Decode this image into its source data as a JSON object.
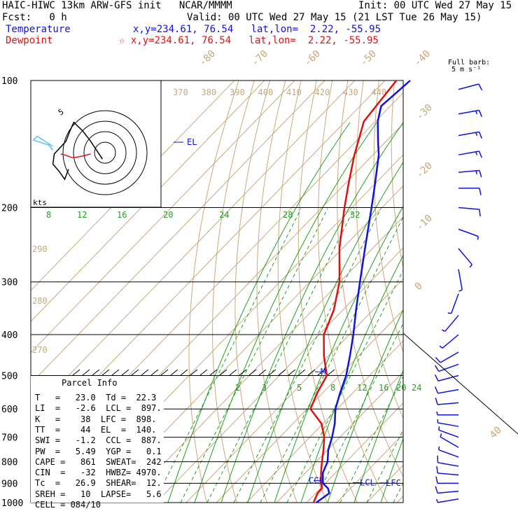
{
  "header": {
    "title": "HAIC-HIWC 13km ARW-GFS init   NCAR/MMMM",
    "init": "Init: 00 UTC Wed 27 May 15",
    "fcst": "Fcst:   0 h",
    "valid": "Valid: 00 UTC Wed 27 May 15 (21 LST Tue 26 May 15)",
    "temp_label": "Temperature",
    "temp_loc": "x,y=234.61, 76.54   lat,lon=  2.22, -55.95",
    "dew_label": "Dewpoint",
    "dew_loc": "☆ x,y=234.61, 76.54   lat,lon=  2.22, -55.95",
    "barb_note1": "Full barb:",
    "barb_note2": "5 m s⁻¹"
  },
  "colors": {
    "temperature": "#1010e0",
    "dewpoint": "#e01010",
    "isotherm": "#c8a87c",
    "mixing_ratio": "#20a020",
    "grid": "#000000",
    "hodo_ring": "#000000",
    "hodo_cyan": "#60c0e8"
  },
  "chart_data": {
    "type": "skew-t",
    "pressure_labels": [
      "100",
      "200",
      "300",
      "400",
      "500",
      "600",
      "700",
      "800",
      "900",
      "1000"
    ],
    "pressure_levels": [
      100,
      200,
      300,
      400,
      500,
      600,
      700,
      800,
      900,
      1000
    ],
    "isotherm_labels": [
      "-80",
      "-70",
      "-60",
      "-50",
      "-40",
      "-30",
      "-20",
      "-10",
      "0"
    ],
    "isotherm_values": [
      -80,
      -70,
      -60,
      -50,
      -40,
      -30,
      -20,
      -10,
      0
    ],
    "isentrope_top_labels": [
      "370",
      "380",
      "390",
      "400",
      "410",
      "420",
      "430",
      "440"
    ],
    "isentrope_side_labels": [
      "290",
      "280",
      "270"
    ],
    "mixing_upper_labels": [
      "8",
      "12",
      "16",
      "20",
      "24",
      "28",
      "32"
    ],
    "mixing_lower_labels": [
      "2",
      "3",
      "5",
      "8",
      "12",
      "16",
      "20",
      "24"
    ],
    "side_isotherm_label": "40",
    "temperature": [
      {
        "p": 1000,
        "t": 23.2
      },
      {
        "p": 950,
        "t": 24.5
      },
      {
        "p": 925,
        "t": 22.5
      },
      {
        "p": 900,
        "t": 19.2
      },
      {
        "p": 850,
        "t": 15.8
      },
      {
        "p": 800,
        "t": 13.8
      },
      {
        "p": 750,
        "t": 10.2
      },
      {
        "p": 700,
        "t": 7.4
      },
      {
        "p": 650,
        "t": 3.9
      },
      {
        "p": 600,
        "t": -0.6
      },
      {
        "p": 550,
        "t": -4.2
      },
      {
        "p": 500,
        "t": -7.8
      },
      {
        "p": 450,
        "t": -12.8
      },
      {
        "p": 400,
        "t": -18.6
      },
      {
        "p": 350,
        "t": -25.6
      },
      {
        "p": 300,
        "t": -33.4
      },
      {
        "p": 250,
        "t": -42.5
      },
      {
        "p": 200,
        "t": -53.5
      },
      {
        "p": 175,
        "t": -60.2
      },
      {
        "p": 150,
        "t": -68.1
      },
      {
        "p": 140,
        "t": -72.4
      },
      {
        "p": 125,
        "t": -79.2
      },
      {
        "p": 115,
        "t": -83.0
      },
      {
        "p": 100,
        "t": -81.6
      }
    ],
    "dewpoint": [
      {
        "p": 1000,
        "t": 22.3
      },
      {
        "p": 950,
        "t": 20.6
      },
      {
        "p": 925,
        "t": 20.5
      },
      {
        "p": 900,
        "t": 18.6
      },
      {
        "p": 850,
        "t": 15.2
      },
      {
        "p": 800,
        "t": 11.9
      },
      {
        "p": 750,
        "t": 8.6
      },
      {
        "p": 700,
        "t": 4.8
      },
      {
        "p": 650,
        "t": -0.5
      },
      {
        "p": 600,
        "t": -8.9
      },
      {
        "p": 550,
        "t": -11.8
      },
      {
        "p": 500,
        "t": -14.2
      },
      {
        "p": 450,
        "t": -21.4
      },
      {
        "p": 400,
        "t": -28.4
      },
      {
        "p": 350,
        "t": -33.0
      },
      {
        "p": 300,
        "t": -40.2
      },
      {
        "p": 250,
        "t": -51.0
      },
      {
        "p": 200,
        "t": -62.5
      },
      {
        "p": 175,
        "t": -69.0
      },
      {
        "p": 150,
        "t": -76.2
      },
      {
        "p": 125,
        "t": -83.8
      },
      {
        "p": 100,
        "t": -86.2
      }
    ],
    "markers": [
      {
        "label": "EL",
        "p": 140
      },
      {
        "label": "M",
        "p": 490
      },
      {
        "label": "CCL",
        "p": 887
      },
      {
        "label": "LCL",
        "p": 897
      },
      {
        "label": "LFC",
        "p": 898
      }
    ],
    "hodograph": {
      "units_label": "kts",
      "rings": 4,
      "black_trace": [
        [
          0.55,
          0.62
        ],
        [
          0.46,
          0.48
        ],
        [
          0.4,
          0.4
        ],
        [
          0.33,
          0.33
        ],
        [
          0.3,
          0.4
        ],
        [
          0.27,
          0.48
        ],
        [
          0.18,
          0.58
        ],
        [
          0.17,
          0.66
        ],
        [
          0.22,
          0.72
        ],
        [
          0.26,
          0.78
        ],
        [
          0.29,
          0.7
        ]
      ],
      "red_trace": [
        [
          0.46,
          0.58
        ],
        [
          0.38,
          0.6
        ],
        [
          0.32,
          0.61
        ],
        [
          0.27,
          0.59
        ],
        [
          0.23,
          0.58
        ]
      ],
      "cyan_trace": [
        [
          0.17,
          0.55
        ],
        [
          0.14,
          0.51
        ],
        [
          0.02,
          0.47
        ],
        [
          0.05,
          0.44
        ],
        [
          0.17,
          0.52
        ]
      ],
      "label_5": "5"
    },
    "wind_barbs": [
      {
        "p": 105,
        "dir": 75,
        "spd": 10
      },
      {
        "p": 120,
        "dir": 80,
        "spd": 15
      },
      {
        "p": 135,
        "dir": 80,
        "spd": 15
      },
      {
        "p": 150,
        "dir": 80,
        "spd": 15
      },
      {
        "p": 165,
        "dir": 85,
        "spd": 15
      },
      {
        "p": 180,
        "dir": 90,
        "spd": 10
      },
      {
        "p": 200,
        "dir": 95,
        "spd": 10
      },
      {
        "p": 225,
        "dir": 110,
        "spd": 5
      },
      {
        "p": 250,
        "dir": 140,
        "spd": 5
      },
      {
        "p": 280,
        "dir": 170,
        "spd": 5
      },
      {
        "p": 320,
        "dir": 200,
        "spd": 5
      },
      {
        "p": 360,
        "dir": 220,
        "spd": 5
      },
      {
        "p": 400,
        "dir": 230,
        "spd": 5
      },
      {
        "p": 440,
        "dir": 240,
        "spd": 10
      },
      {
        "p": 470,
        "dir": 250,
        "spd": 10
      },
      {
        "p": 500,
        "dir": 255,
        "spd": 10
      },
      {
        "p": 540,
        "dir": 260,
        "spd": 10
      },
      {
        "p": 580,
        "dir": 265,
        "spd": 10
      },
      {
        "p": 620,
        "dir": 270,
        "spd": 5
      },
      {
        "p": 660,
        "dir": 280,
        "spd": 5
      },
      {
        "p": 700,
        "dir": 290,
        "spd": 5
      },
      {
        "p": 740,
        "dir": 300,
        "spd": 5
      },
      {
        "p": 780,
        "dir": 290,
        "spd": 5
      },
      {
        "p": 820,
        "dir": 280,
        "spd": 10
      },
      {
        "p": 860,
        "dir": 275,
        "spd": 10
      },
      {
        "p": 900,
        "dir": 270,
        "spd": 10
      },
      {
        "p": 940,
        "dir": 265,
        "spd": 10
      },
      {
        "p": 980,
        "dir": 260,
        "spd": 5
      }
    ]
  },
  "parcel_info": {
    "title": "Parcel Info",
    "rows": [
      "T   =   23.0  Td =  22.3",
      "LI  =   -2.6  LCL =  897.",
      "K   =    38  LFC =  898.",
      "TT  =    44  EL  =  140.",
      "SWI =   -1.2  CCL =  887.",
      "PW  =   5.49  YGP =   0.1",
      "CAPE =   861  SWEAT=  242",
      "CIN  =   -32  HWBZ= 4970.",
      "Tc  =   26.9  SHEAR=  12.",
      "SREH =   10  LAPSE=   5.6",
      "CELL = 084/10"
    ]
  }
}
